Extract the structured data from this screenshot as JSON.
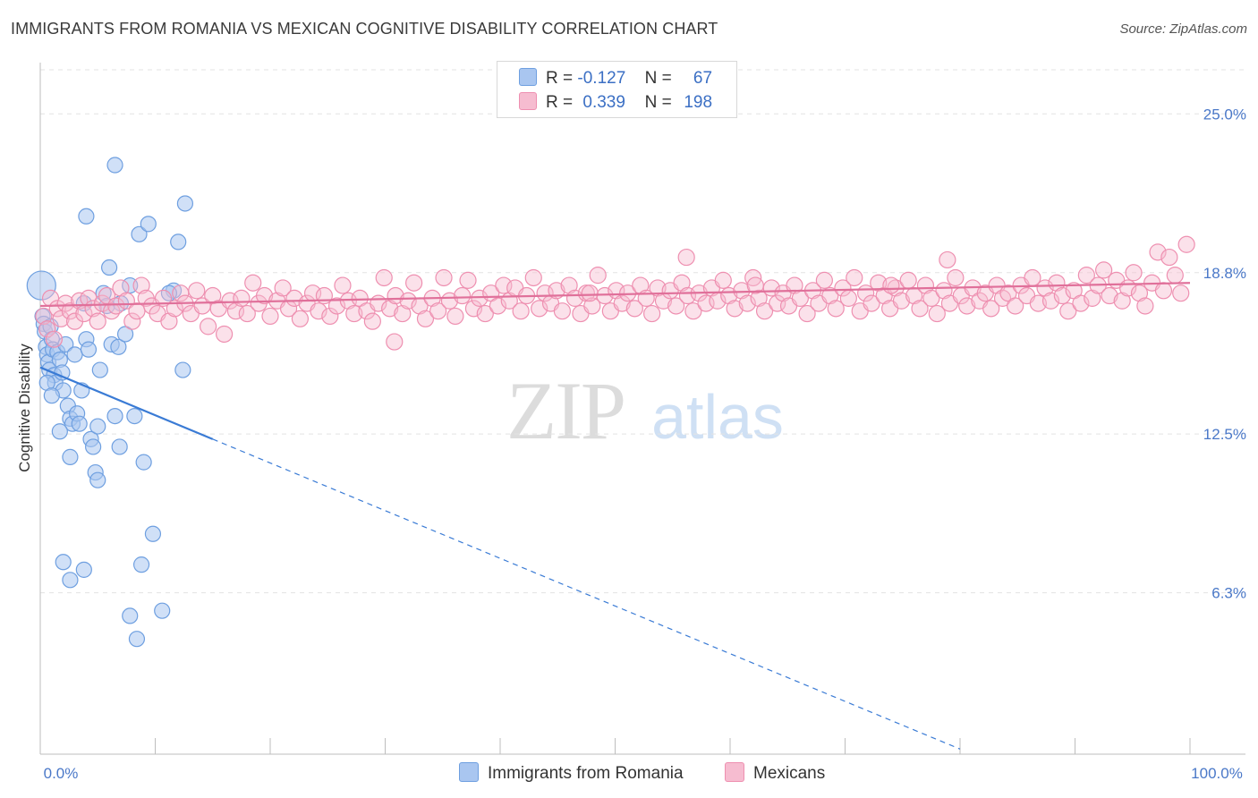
{
  "chart_data": {
    "type": "scatter",
    "title": "IMMIGRANTS FROM ROMANIA VS MEXICAN COGNITIVE DISABILITY CORRELATION CHART",
    "source": "Source: ZipAtlas.com",
    "xlabel": "",
    "ylabel": "Cognitive Disability",
    "x_tick_labels": [
      "0.0%",
      "100.0%"
    ],
    "y_tick_labels": [
      "25.0%",
      "18.8%",
      "12.5%",
      "6.3%"
    ],
    "y_ticks": [
      25.0,
      18.8,
      12.5,
      6.3
    ],
    "xlim": [
      0,
      100
    ],
    "ylim": [
      0,
      27
    ],
    "watermark": {
      "zip": "ZIP",
      "atlas": "atlas"
    },
    "legend": {
      "rows": [
        {
          "r_label": "R =",
          "r_value": "-0.127",
          "n_label": "N =",
          "n_value": "67"
        },
        {
          "r_label": "R =",
          "r_value": "0.339",
          "n_label": "N =",
          "n_value": "198"
        }
      ]
    },
    "colors": {
      "romania_fill": "#a9c6f0",
      "romania_stroke": "#6e9fe0",
      "romania_line": "#3a7bd5",
      "mexican_fill": "#f6bcd0",
      "mexican_stroke": "#ee8fb0",
      "mexican_line": "#e0709a",
      "grid": "#e3e3e3",
      "axis_text": "#4a78c8"
    },
    "series": [
      {
        "name": "Immigrants from Romania",
        "trend": {
          "x": [
            0,
            15,
            80
          ],
          "y": [
            15.1,
            12.3,
            0.2
          ],
          "solid_to": 15
        },
        "points": [
          [
            0.1,
            18.3
          ],
          [
            0.2,
            17.1
          ],
          [
            0.3,
            16.8
          ],
          [
            0.4,
            16.5
          ],
          [
            0.5,
            15.9
          ],
          [
            0.6,
            15.6
          ],
          [
            0.7,
            15.3
          ],
          [
            0.8,
            15.0
          ],
          [
            0.9,
            16.7
          ],
          [
            1.0,
            16.2
          ],
          [
            1.1,
            15.8
          ],
          [
            1.2,
            14.8
          ],
          [
            1.3,
            14.5
          ],
          [
            1.5,
            15.7
          ],
          [
            1.7,
            15.4
          ],
          [
            1.9,
            14.9
          ],
          [
            2.0,
            14.2
          ],
          [
            2.2,
            16.0
          ],
          [
            2.4,
            13.6
          ],
          [
            2.6,
            13.1
          ],
          [
            2.8,
            12.9
          ],
          [
            3.0,
            15.6
          ],
          [
            3.2,
            13.3
          ],
          [
            3.4,
            12.9
          ],
          [
            3.6,
            14.2
          ],
          [
            3.8,
            17.6
          ],
          [
            4.0,
            16.2
          ],
          [
            4.2,
            15.8
          ],
          [
            4.4,
            12.3
          ],
          [
            4.6,
            12.0
          ],
          [
            4.8,
            11.0
          ],
          [
            5.0,
            12.8
          ],
          [
            5.2,
            15.0
          ],
          [
            5.5,
            18.0
          ],
          [
            5.8,
            17.5
          ],
          [
            6.0,
            19.0
          ],
          [
            6.2,
            16.0
          ],
          [
            6.5,
            13.2
          ],
          [
            6.8,
            15.9
          ],
          [
            7.0,
            17.6
          ],
          [
            7.4,
            16.4
          ],
          [
            7.8,
            18.3
          ],
          [
            8.2,
            13.2
          ],
          [
            8.6,
            20.3
          ],
          [
            9.0,
            11.4
          ],
          [
            9.4,
            20.7
          ],
          [
            9.8,
            8.6
          ],
          [
            1.7,
            12.6
          ],
          [
            2.6,
            11.6
          ],
          [
            4.0,
            21.0
          ],
          [
            6.5,
            23.0
          ],
          [
            7.8,
            5.4
          ],
          [
            8.8,
            7.4
          ],
          [
            10.6,
            5.6
          ],
          [
            11.6,
            18.1
          ],
          [
            12.6,
            21.5
          ],
          [
            8.4,
            4.5
          ],
          [
            12.4,
            15.0
          ],
          [
            11.2,
            18.0
          ],
          [
            12.0,
            20.0
          ],
          [
            3.8,
            7.2
          ],
          [
            5.0,
            10.7
          ],
          [
            2.0,
            7.5
          ],
          [
            6.9,
            12.0
          ],
          [
            2.6,
            6.8
          ],
          [
            0.6,
            14.5
          ],
          [
            1.0,
            14.0
          ]
        ]
      },
      {
        "name": "Mexicans",
        "trend": {
          "x": [
            0,
            100
          ],
          "y": [
            17.5,
            18.4
          ]
        },
        "points": [
          [
            0.3,
            17.1
          ],
          [
            0.6,
            16.6
          ],
          [
            0.9,
            17.8
          ],
          [
            1.2,
            16.2
          ],
          [
            1.5,
            17.4
          ],
          [
            1.8,
            17.0
          ],
          [
            2.2,
            17.6
          ],
          [
            2.6,
            17.3
          ],
          [
            3.0,
            16.9
          ],
          [
            3.4,
            17.7
          ],
          [
            3.8,
            17.2
          ],
          [
            4.2,
            17.8
          ],
          [
            4.6,
            17.4
          ],
          [
            5.0,
            16.9
          ],
          [
            5.4,
            17.6
          ],
          [
            5.8,
            17.9
          ],
          [
            6.2,
            17.3
          ],
          [
            6.6,
            17.5
          ],
          [
            7.0,
            18.2
          ],
          [
            7.5,
            17.7
          ],
          [
            8.0,
            16.9
          ],
          [
            8.4,
            17.3
          ],
          [
            8.8,
            18.3
          ],
          [
            9.2,
            17.8
          ],
          [
            9.7,
            17.5
          ],
          [
            10.2,
            17.2
          ],
          [
            10.7,
            17.8
          ],
          [
            11.2,
            16.9
          ],
          [
            11.7,
            17.4
          ],
          [
            12.2,
            18.0
          ],
          [
            12.6,
            17.6
          ],
          [
            13.1,
            17.2
          ],
          [
            13.6,
            18.1
          ],
          [
            14.1,
            17.5
          ],
          [
            14.6,
            16.7
          ],
          [
            15.0,
            17.9
          ],
          [
            15.5,
            17.4
          ],
          [
            16.0,
            16.4
          ],
          [
            16.5,
            17.7
          ],
          [
            17.0,
            17.3
          ],
          [
            17.5,
            17.8
          ],
          [
            18.0,
            17.2
          ],
          [
            18.5,
            18.4
          ],
          [
            19.0,
            17.6
          ],
          [
            19.5,
            17.9
          ],
          [
            20.0,
            17.1
          ],
          [
            20.6,
            17.7
          ],
          [
            21.1,
            18.2
          ],
          [
            21.6,
            17.4
          ],
          [
            22.1,
            17.8
          ],
          [
            22.6,
            17.0
          ],
          [
            23.2,
            17.6
          ],
          [
            23.7,
            18.0
          ],
          [
            24.2,
            17.3
          ],
          [
            24.7,
            17.9
          ],
          [
            25.2,
            17.1
          ],
          [
            25.8,
            17.5
          ],
          [
            26.3,
            18.3
          ],
          [
            26.8,
            17.7
          ],
          [
            27.3,
            17.2
          ],
          [
            27.8,
            17.8
          ],
          [
            28.4,
            17.3
          ],
          [
            28.9,
            16.9
          ],
          [
            29.4,
            17.6
          ],
          [
            29.9,
            18.6
          ],
          [
            30.4,
            17.4
          ],
          [
            30.9,
            17.9
          ],
          [
            31.5,
            17.2
          ],
          [
            32.0,
            17.7
          ],
          [
            32.5,
            18.4
          ],
          [
            33.0,
            17.5
          ],
          [
            33.5,
            17.0
          ],
          [
            34.1,
            17.8
          ],
          [
            34.6,
            17.3
          ],
          [
            35.1,
            18.6
          ],
          [
            35.6,
            17.7
          ],
          [
            36.1,
            17.1
          ],
          [
            36.7,
            17.9
          ],
          [
            37.2,
            18.5
          ],
          [
            37.7,
            17.4
          ],
          [
            38.2,
            17.8
          ],
          [
            38.7,
            17.2
          ],
          [
            39.2,
            18.0
          ],
          [
            39.8,
            17.5
          ],
          [
            40.3,
            18.3
          ],
          [
            40.8,
            17.7
          ],
          [
            41.3,
            18.2
          ],
          [
            41.8,
            17.3
          ],
          [
            42.3,
            17.9
          ],
          [
            42.9,
            18.6
          ],
          [
            43.4,
            17.4
          ],
          [
            43.9,
            18.0
          ],
          [
            44.4,
            17.6
          ],
          [
            44.9,
            18.1
          ],
          [
            45.4,
            17.3
          ],
          [
            46.0,
            18.3
          ],
          [
            46.5,
            17.8
          ],
          [
            47.0,
            17.2
          ],
          [
            47.5,
            18.0
          ],
          [
            48.0,
            17.5
          ],
          [
            48.5,
            18.7
          ],
          [
            49.1,
            17.9
          ],
          [
            49.6,
            17.3
          ],
          [
            50.1,
            18.1
          ],
          [
            50.6,
            17.6
          ],
          [
            51.1,
            18.0
          ],
          [
            51.7,
            17.4
          ],
          [
            52.2,
            18.3
          ],
          [
            52.7,
            17.8
          ],
          [
            53.2,
            17.2
          ],
          [
            53.7,
            18.2
          ],
          [
            54.2,
            17.7
          ],
          [
            54.8,
            18.1
          ],
          [
            55.3,
            17.5
          ],
          [
            55.8,
            18.4
          ],
          [
            56.3,
            17.9
          ],
          [
            56.8,
            17.3
          ],
          [
            57.3,
            18.0
          ],
          [
            57.9,
            17.6
          ],
          [
            58.4,
            18.2
          ],
          [
            58.9,
            17.7
          ],
          [
            59.4,
            18.5
          ],
          [
            59.9,
            17.9
          ],
          [
            60.4,
            17.4
          ],
          [
            61.0,
            18.1
          ],
          [
            61.5,
            17.6
          ],
          [
            62.0,
            18.6
          ],
          [
            62.5,
            17.8
          ],
          [
            63.0,
            17.3
          ],
          [
            63.6,
            18.2
          ],
          [
            64.1,
            17.6
          ],
          [
            64.6,
            18.0
          ],
          [
            65.1,
            17.5
          ],
          [
            65.6,
            18.3
          ],
          [
            66.1,
            17.8
          ],
          [
            66.7,
            17.2
          ],
          [
            67.2,
            18.1
          ],
          [
            67.7,
            17.6
          ],
          [
            68.2,
            18.5
          ],
          [
            68.7,
            17.9
          ],
          [
            69.2,
            17.4
          ],
          [
            69.8,
            18.2
          ],
          [
            70.3,
            17.8
          ],
          [
            70.8,
            18.6
          ],
          [
            71.3,
            17.3
          ],
          [
            71.8,
            18.0
          ],
          [
            72.3,
            17.6
          ],
          [
            72.9,
            18.4
          ],
          [
            73.4,
            17.9
          ],
          [
            73.9,
            17.4
          ],
          [
            74.4,
            18.2
          ],
          [
            74.9,
            17.7
          ],
          [
            75.5,
            18.5
          ],
          [
            76.0,
            17.9
          ],
          [
            76.5,
            17.4
          ],
          [
            77.0,
            18.3
          ],
          [
            77.5,
            17.8
          ],
          [
            78.0,
            17.2
          ],
          [
            78.6,
            18.1
          ],
          [
            79.1,
            17.6
          ],
          [
            79.6,
            18.6
          ],
          [
            80.1,
            17.9
          ],
          [
            80.6,
            17.5
          ],
          [
            81.1,
            18.2
          ],
          [
            81.7,
            17.7
          ],
          [
            82.2,
            18.0
          ],
          [
            82.7,
            17.4
          ],
          [
            83.2,
            18.3
          ],
          [
            83.7,
            17.8
          ],
          [
            84.2,
            18.0
          ],
          [
            84.8,
            17.5
          ],
          [
            85.3,
            18.3
          ],
          [
            85.8,
            17.9
          ],
          [
            86.3,
            18.6
          ],
          [
            86.8,
            17.6
          ],
          [
            87.4,
            18.2
          ],
          [
            87.9,
            17.7
          ],
          [
            88.4,
            18.4
          ],
          [
            88.9,
            17.9
          ],
          [
            89.4,
            17.3
          ],
          [
            89.9,
            18.1
          ],
          [
            90.5,
            17.6
          ],
          [
            91.0,
            18.7
          ],
          [
            91.5,
            17.8
          ],
          [
            92.0,
            18.3
          ],
          [
            92.5,
            18.9
          ],
          [
            93.0,
            17.9
          ],
          [
            93.6,
            18.5
          ],
          [
            94.1,
            17.7
          ],
          [
            94.6,
            18.2
          ],
          [
            95.1,
            18.8
          ],
          [
            95.6,
            18.0
          ],
          [
            96.1,
            17.5
          ],
          [
            96.7,
            18.4
          ],
          [
            97.2,
            19.6
          ],
          [
            97.7,
            18.1
          ],
          [
            98.2,
            19.4
          ],
          [
            98.7,
            18.7
          ],
          [
            99.2,
            18.0
          ],
          [
            99.7,
            19.9
          ],
          [
            30.8,
            16.1
          ],
          [
            47.8,
            18.0
          ],
          [
            56.2,
            19.4
          ],
          [
            62.2,
            18.3
          ],
          [
            78.9,
            19.3
          ],
          [
            74.0,
            18.3
          ]
        ]
      }
    ]
  }
}
